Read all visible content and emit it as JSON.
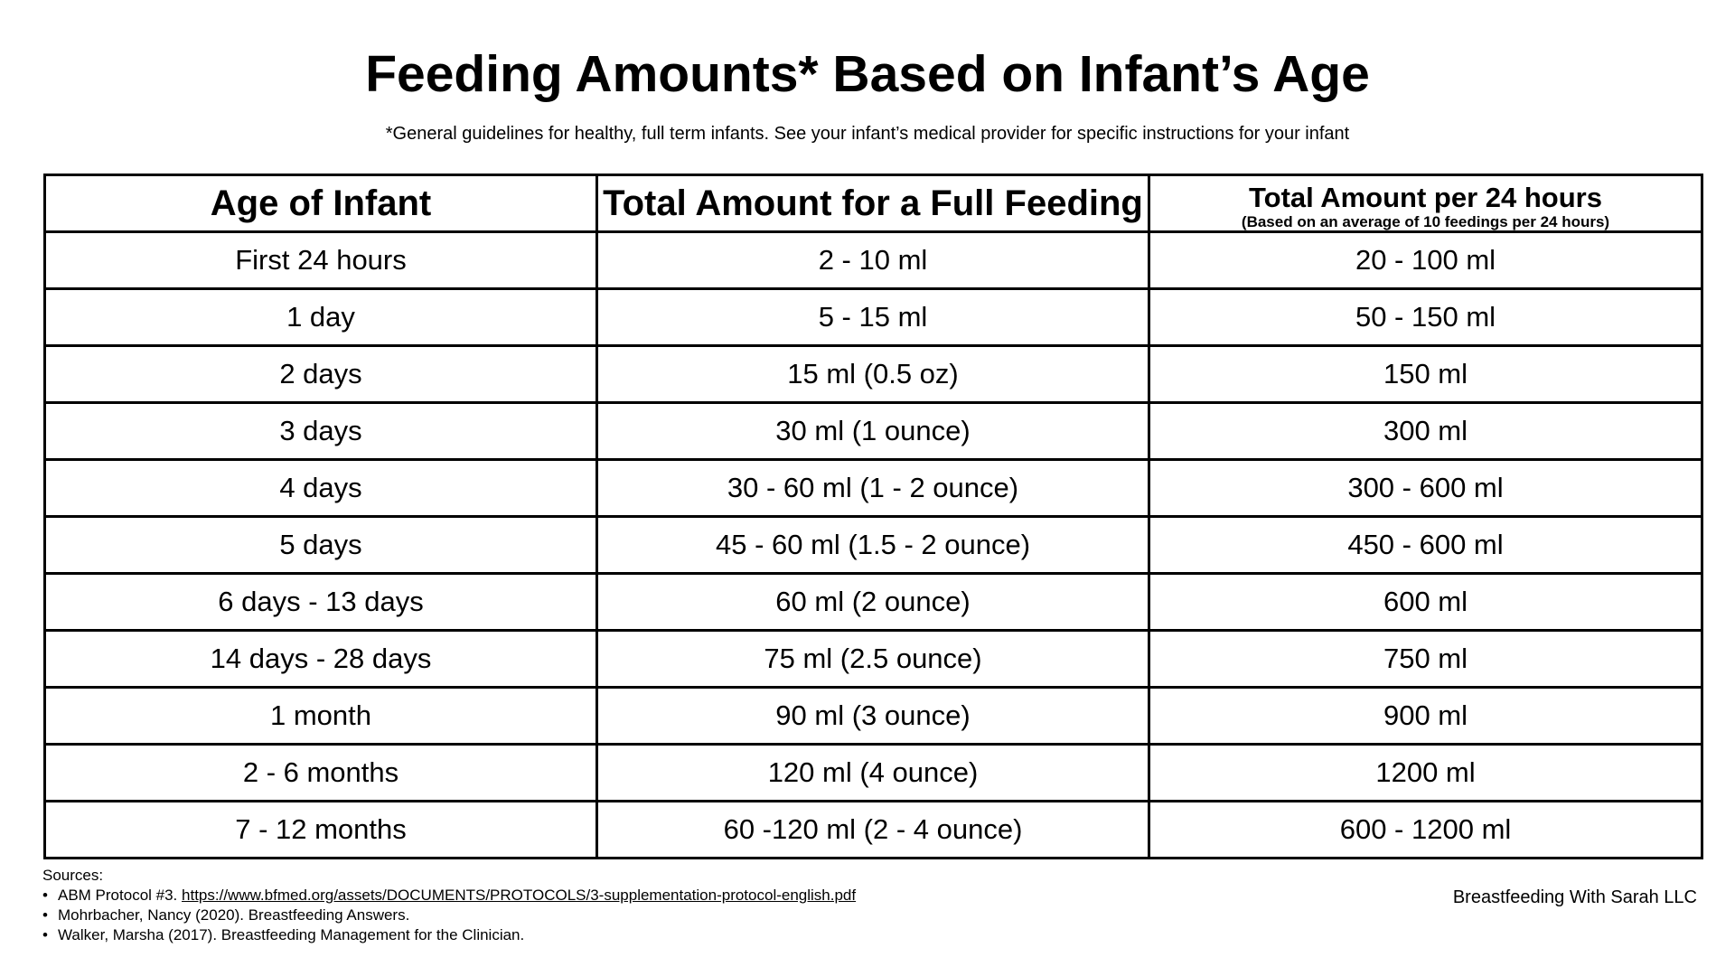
{
  "title": "Feeding Amounts* Based on Infant’s Age",
  "subtitle": "*General guidelines for healthy, full term infants. See your infant’s medical provider for specific instructions for your infant",
  "table": {
    "headers": {
      "age": "Age of Infant",
      "full_feeding": "Total Amount for a Full Feeding",
      "per_24h": "Total Amount per 24 hours",
      "per_24h_note": "(Based on an average of 10 feedings per 24 hours)"
    },
    "rows": [
      {
        "age": "First 24 hours",
        "full_feeding": "2 - 10 ml",
        "per_24h": "20 - 100 ml"
      },
      {
        "age": "1 day",
        "full_feeding": "5 - 15 ml",
        "per_24h": "50 - 150 ml"
      },
      {
        "age": "2 days",
        "full_feeding": "15 ml (0.5 oz)",
        "per_24h": "150 ml"
      },
      {
        "age": "3 days",
        "full_feeding": "30 ml (1 ounce)",
        "per_24h": "300 ml"
      },
      {
        "age": "4 days",
        "full_feeding": "30 - 60 ml (1 - 2 ounce)",
        "per_24h": "300 - 600 ml"
      },
      {
        "age": "5 days",
        "full_feeding": "45 - 60 ml (1.5  - 2 ounce)",
        "per_24h": "450 - 600 ml"
      },
      {
        "age": "6 days - 13 days",
        "full_feeding": "60 ml (2 ounce)",
        "per_24h": "600 ml"
      },
      {
        "age": "14 days - 28 days",
        "full_feeding": "75 ml (2.5 ounce)",
        "per_24h": "750 ml"
      },
      {
        "age": "1 month",
        "full_feeding": "90 ml (3 ounce)",
        "per_24h": "900 ml"
      },
      {
        "age": "2  - 6 months",
        "full_feeding": "120 ml (4 ounce)",
        "per_24h": "1200 ml"
      },
      {
        "age": "7 - 12 months",
        "full_feeding": "60 -120 ml (2 - 4 ounce)",
        "per_24h": "600 - 1200 ml"
      }
    ]
  },
  "sources": {
    "label": "Sources:",
    "bullet": "•",
    "items": [
      {
        "text": "ABM Protocol #3. ",
        "link": "https://www.bfmed.org/assets/DOCUMENTS/PROTOCOLS/3-supplementation-protocol-english.pdf"
      },
      {
        "text": "Mohrbacher, Nancy (2020). Breastfeeding Answers.",
        "link": ""
      },
      {
        "text": "Walker, Marsha (2017). Breastfeeding Management for the Clinician.",
        "link": ""
      }
    ]
  },
  "brand": "Breastfeeding With Sarah LLC"
}
